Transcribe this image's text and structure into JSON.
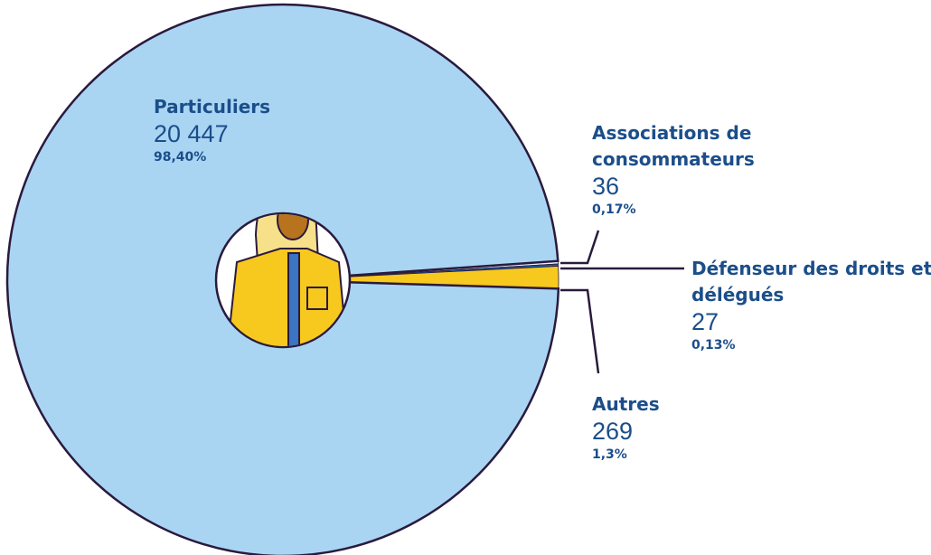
{
  "chart_data": {
    "type": "pie",
    "categories": [
      "Particuliers",
      "Associations de consommateurs",
      "Défenseur des droits et délégués",
      "Autres"
    ],
    "values": [
      98.4,
      0.17,
      0.13,
      1.3
    ],
    "value_labels": [
      "98,40%",
      "0,17%",
      "0,13%",
      "1,3%"
    ],
    "counts": [
      {
        "value": 20447,
        "label": "20 447"
      },
      36,
      27,
      269
    ],
    "colors": [
      "#a9d5f3",
      "#e8f4fc",
      "#1f5fa8",
      "#f7c81e"
    ]
  }
}
